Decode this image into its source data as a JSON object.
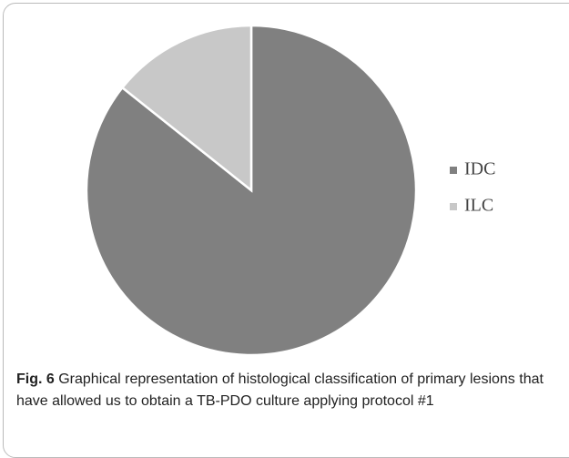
{
  "chart_data": {
    "type": "pie",
    "categories": [
      "IDC",
      "ILC"
    ],
    "values": [
      85.7,
      14.3
    ],
    "colors": [
      "#808080",
      "#c8c8c8"
    ],
    "legend": "right"
  },
  "caption": {
    "label": "Fig. 6",
    "text": "Graphical representation of histological classification of primary lesions that have allowed us to obtain a TB-PDO culture applying protocol #1"
  }
}
